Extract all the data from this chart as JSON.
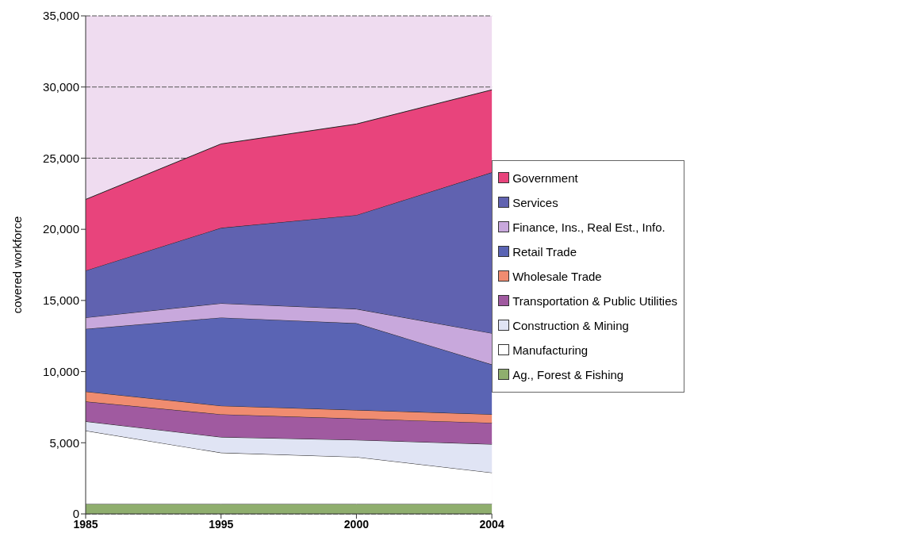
{
  "chart_data": {
    "type": "area",
    "stacked": true,
    "ylabel": "covered workforce",
    "categories": [
      "1985",
      "1995",
      "2000",
      "2004"
    ],
    "series": [
      {
        "name": "Ag., Forest & Fishing",
        "color": "#8fae6e",
        "values": [
          700,
          700,
          700,
          700
        ]
      },
      {
        "name": "Manufacturing",
        "color": "#ffffff",
        "values": [
          5150,
          3600,
          3300,
          2200
        ]
      },
      {
        "name": "Construction & Mining",
        "color": "#e0e4f4",
        "values": [
          650,
          1100,
          1200,
          2000
        ]
      },
      {
        "name": "Transportation & Public Utilities",
        "color": "#a05aa0",
        "values": [
          1400,
          1600,
          1500,
          1500
        ]
      },
      {
        "name": "Wholesale Trade",
        "color": "#f08c70",
        "values": [
          700,
          600,
          600,
          600
        ]
      },
      {
        "name": "Retail Trade",
        "color": "#5a64b4",
        "values": [
          4400,
          6200,
          6100,
          3500
        ]
      },
      {
        "name": "Finance, Ins., Real Est., Info.",
        "color": "#c8a8dc",
        "values": [
          800,
          1000,
          1000,
          2200
        ]
      },
      {
        "name": "Services",
        "color": "#6062b0",
        "values": [
          3300,
          5300,
          6600,
          11300
        ]
      },
      {
        "name": "Government",
        "color": "#e8447c",
        "values": [
          5000,
          5900,
          6400,
          5800
        ]
      }
    ],
    "ylim": [
      0,
      35000
    ],
    "yticks": [
      0,
      {
        "value": 5000,
        "label": "5,000"
      },
      {
        "value": 10000,
        "label": "10,000"
      },
      {
        "value": 15000,
        "label": "15,000"
      },
      {
        "value": 20000,
        "label": "20,000"
      },
      {
        "value": 25000,
        "label": "25,000"
      },
      {
        "value": 30000,
        "label": "30,000"
      },
      {
        "value": 35000,
        "label": "35,000"
      }
    ],
    "grid": "y",
    "legend": "right"
  }
}
